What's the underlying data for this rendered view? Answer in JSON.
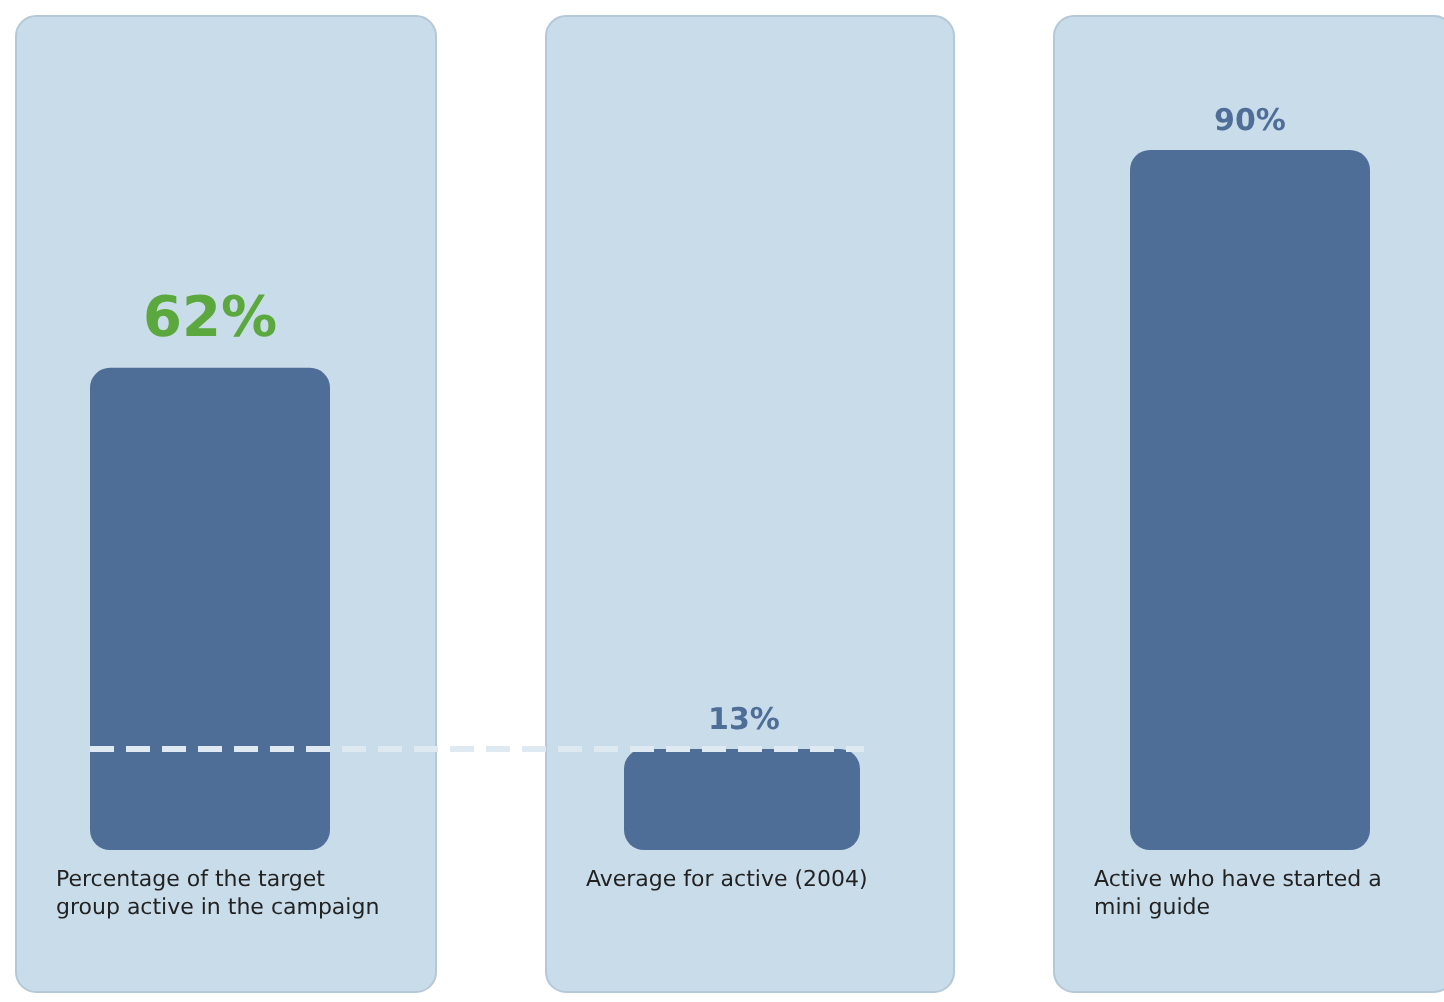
{
  "chart_data": {
    "type": "bar",
    "categories": [
      "Percentage of the target group active in the campaign",
      "Average for active (2004)",
      "Active who have started a mini guide"
    ],
    "values": [
      62,
      13,
      90
    ],
    "value_labels": [
      "62%",
      "13%",
      "90%"
    ],
    "color": "#4e6d97",
    "ref_lines": [
      {
        "axis": "y",
        "value": 13,
        "color": "#dfe9f2",
        "line_style": "dashed"
      }
    ]
  }
}
